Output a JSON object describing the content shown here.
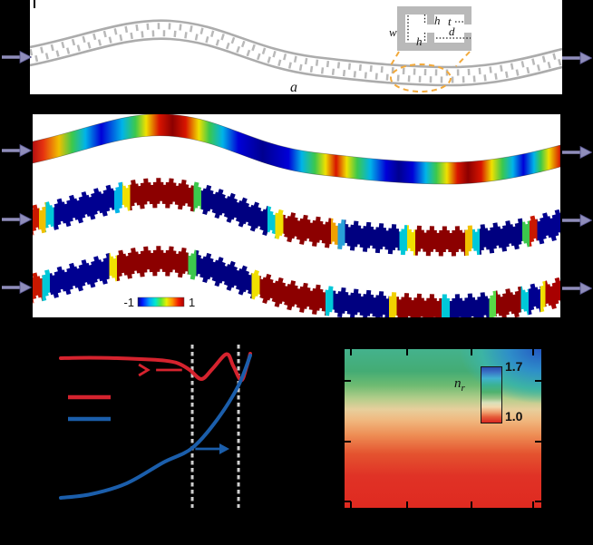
{
  "panel_a": {
    "labels": {
      "w": "w",
      "h_top": "h",
      "t": "t",
      "h_bottom": "h",
      "d": "d",
      "period": "a"
    },
    "colors": {
      "waveguide": "#b9b9b9",
      "rail": "#acacac",
      "highlight": "#f2a93b",
      "arrow": "#8f8dbb",
      "arrow_edge": "#55538c",
      "dim_line": "#1a1a1a"
    }
  },
  "panel_b": {
    "colorbar": {
      "min_label": "-1",
      "max_label": "1",
      "gradient": [
        {
          "o": 0,
          "c": "#000082"
        },
        {
          "o": 0.1,
          "c": "#0018ff"
        },
        {
          "o": 0.25,
          "c": "#00a4ff"
        },
        {
          "o": 0.38,
          "c": "#00e8d0"
        },
        {
          "o": 0.5,
          "c": "#58e838"
        },
        {
          "o": 0.62,
          "c": "#e8f000"
        },
        {
          "o": 0.75,
          "c": "#ff9000"
        },
        {
          "o": 0.88,
          "c": "#f01800"
        },
        {
          "o": 1,
          "c": "#a80000"
        }
      ]
    },
    "rows": [
      {
        "name": "smooth-waveguide-field",
        "comb": false,
        "stops": [
          {
            "o": 0,
            "c": "#b41010"
          },
          {
            "o": 0.02,
            "c": "#e63210"
          },
          {
            "o": 0.05,
            "c": "#f0c000"
          },
          {
            "o": 0.075,
            "c": "#3cc84c"
          },
          {
            "o": 0.1,
            "c": "#00b4e8"
          },
          {
            "o": 0.13,
            "c": "#0000d8"
          },
          {
            "o": 0.17,
            "c": "#00b4e8"
          },
          {
            "o": 0.195,
            "c": "#3cc84c"
          },
          {
            "o": 0.215,
            "c": "#f0e000"
          },
          {
            "o": 0.24,
            "c": "#d81400"
          },
          {
            "o": 0.265,
            "c": "#8c0000"
          },
          {
            "o": 0.29,
            "c": "#d81400"
          },
          {
            "o": 0.315,
            "c": "#f0e000"
          },
          {
            "o": 0.335,
            "c": "#3cc84c"
          },
          {
            "o": 0.36,
            "c": "#00b4e8"
          },
          {
            "o": 0.39,
            "c": "#0000d8"
          },
          {
            "o": 0.436,
            "c": "#000090"
          },
          {
            "o": 0.485,
            "c": "#0000d8"
          },
          {
            "o": 0.51,
            "c": "#00b4e8"
          },
          {
            "o": 0.535,
            "c": "#3cc84c"
          },
          {
            "o": 0.555,
            "c": "#f0e000"
          },
          {
            "o": 0.575,
            "c": "#d81400"
          },
          {
            "o": 0.595,
            "c": "#f0e000"
          },
          {
            "o": 0.615,
            "c": "#3cc84c"
          },
          {
            "o": 0.64,
            "c": "#00b4e8"
          },
          {
            "o": 0.67,
            "c": "#0000d8"
          },
          {
            "o": 0.694,
            "c": "#000090"
          },
          {
            "o": 0.72,
            "c": "#0000d8"
          },
          {
            "o": 0.745,
            "c": "#00b4e8"
          },
          {
            "o": 0.765,
            "c": "#3cc84c"
          },
          {
            "o": 0.785,
            "c": "#f0e000"
          },
          {
            "o": 0.805,
            "c": "#d81400"
          },
          {
            "o": 0.825,
            "c": "#8c0000"
          },
          {
            "o": 0.85,
            "c": "#d81400"
          },
          {
            "o": 0.87,
            "c": "#f0e000"
          },
          {
            "o": 0.89,
            "c": "#3cc84c"
          },
          {
            "o": 0.91,
            "c": "#00b4e8"
          },
          {
            "o": 0.93,
            "c": "#0000d8"
          },
          {
            "o": 0.95,
            "c": "#00b4e8"
          },
          {
            "o": 0.963,
            "c": "#3cc84c"
          },
          {
            "o": 0.978,
            "c": "#f0e000"
          },
          {
            "o": 1,
            "c": "#d81400"
          }
        ]
      },
      {
        "name": "comb-waveguide-field-1",
        "comb": true,
        "stops": [
          {
            "o": 0,
            "c": "#c81800"
          },
          {
            "o": 0.012,
            "c": "#c81800"
          },
          {
            "o": 0.012,
            "c": "#f0c000"
          },
          {
            "o": 0.025,
            "c": "#f0c000"
          },
          {
            "o": 0.025,
            "c": "#00c8d8"
          },
          {
            "o": 0.04,
            "c": "#00c8d8"
          },
          {
            "o": 0.04,
            "c": "#000090"
          },
          {
            "o": 0.155,
            "c": "#000090"
          },
          {
            "o": 0.155,
            "c": "#00b4e8"
          },
          {
            "o": 0.17,
            "c": "#00b4e8"
          },
          {
            "o": 0.17,
            "c": "#f0e000"
          },
          {
            "o": 0.185,
            "c": "#f0e000"
          },
          {
            "o": 0.185,
            "c": "#8c0000"
          },
          {
            "o": 0.305,
            "c": "#8c0000"
          },
          {
            "o": 0.305,
            "c": "#3cc84c"
          },
          {
            "o": 0.32,
            "c": "#3cc84c"
          },
          {
            "o": 0.32,
            "c": "#000080"
          },
          {
            "o": 0.445,
            "c": "#000080"
          },
          {
            "o": 0.445,
            "c": "#00c8d8"
          },
          {
            "o": 0.46,
            "c": "#00c8d8"
          },
          {
            "o": 0.46,
            "c": "#f0e000"
          },
          {
            "o": 0.475,
            "c": "#f0e000"
          },
          {
            "o": 0.475,
            "c": "#8c0000"
          },
          {
            "o": 0.565,
            "c": "#8c0000"
          },
          {
            "o": 0.565,
            "c": "#f0a000"
          },
          {
            "o": 0.578,
            "c": "#f0a000"
          },
          {
            "o": 0.578,
            "c": "#28a0d8"
          },
          {
            "o": 0.592,
            "c": "#28a0d8"
          },
          {
            "o": 0.592,
            "c": "#000080"
          },
          {
            "o": 0.695,
            "c": "#000080"
          },
          {
            "o": 0.695,
            "c": "#00c8d8"
          },
          {
            "o": 0.71,
            "c": "#00c8d8"
          },
          {
            "o": 0.71,
            "c": "#f0e000"
          },
          {
            "o": 0.725,
            "c": "#f0e000"
          },
          {
            "o": 0.725,
            "c": "#8c0000"
          },
          {
            "o": 0.82,
            "c": "#8c0000"
          },
          {
            "o": 0.82,
            "c": "#f0c000"
          },
          {
            "o": 0.833,
            "c": "#f0c000"
          },
          {
            "o": 0.833,
            "c": "#00c8d8"
          },
          {
            "o": 0.847,
            "c": "#00c8d8"
          },
          {
            "o": 0.847,
            "c": "#000080"
          },
          {
            "o": 0.928,
            "c": "#000080"
          },
          {
            "o": 0.928,
            "c": "#3cc84c"
          },
          {
            "o": 0.942,
            "c": "#3cc84c"
          },
          {
            "o": 0.942,
            "c": "#c81800"
          },
          {
            "o": 0.956,
            "c": "#c81800"
          },
          {
            "o": 0.956,
            "c": "#000090"
          },
          {
            "o": 1,
            "c": "#000090"
          }
        ]
      },
      {
        "name": "comb-waveguide-field-2",
        "comb": true,
        "stops": [
          {
            "o": 0,
            "c": "#c81800"
          },
          {
            "o": 0.018,
            "c": "#c81800"
          },
          {
            "o": 0.018,
            "c": "#00c8d8"
          },
          {
            "o": 0.033,
            "c": "#00c8d8"
          },
          {
            "o": 0.033,
            "c": "#000090"
          },
          {
            "o": 0.145,
            "c": "#000090"
          },
          {
            "o": 0.145,
            "c": "#f0e000"
          },
          {
            "o": 0.16,
            "c": "#f0e000"
          },
          {
            "o": 0.16,
            "c": "#8c0000"
          },
          {
            "o": 0.295,
            "c": "#8c0000"
          },
          {
            "o": 0.295,
            "c": "#3cc84c"
          },
          {
            "o": 0.31,
            "c": "#3cc84c"
          },
          {
            "o": 0.31,
            "c": "#000080"
          },
          {
            "o": 0.415,
            "c": "#000080"
          },
          {
            "o": 0.415,
            "c": "#f0e000"
          },
          {
            "o": 0.43,
            "c": "#f0e000"
          },
          {
            "o": 0.43,
            "c": "#8c0000"
          },
          {
            "o": 0.555,
            "c": "#8c0000"
          },
          {
            "o": 0.555,
            "c": "#00c8d8"
          },
          {
            "o": 0.57,
            "c": "#00c8d8"
          },
          {
            "o": 0.57,
            "c": "#000080"
          },
          {
            "o": 0.675,
            "c": "#000080"
          },
          {
            "o": 0.675,
            "c": "#f0d000"
          },
          {
            "o": 0.69,
            "c": "#f0d000"
          },
          {
            "o": 0.69,
            "c": "#8c0000"
          },
          {
            "o": 0.775,
            "c": "#8c0000"
          },
          {
            "o": 0.775,
            "c": "#00c8d8"
          },
          {
            "o": 0.79,
            "c": "#00c8d8"
          },
          {
            "o": 0.79,
            "c": "#000080"
          },
          {
            "o": 0.865,
            "c": "#000080"
          },
          {
            "o": 0.865,
            "c": "#58d848"
          },
          {
            "o": 0.878,
            "c": "#58d848"
          },
          {
            "o": 0.878,
            "c": "#8c0000"
          },
          {
            "o": 0.925,
            "c": "#8c0000"
          },
          {
            "o": 0.925,
            "c": "#00c8d8"
          },
          {
            "o": 0.94,
            "c": "#00c8d8"
          },
          {
            "o": 0.94,
            "c": "#000090"
          },
          {
            "o": 0.962,
            "c": "#000090"
          },
          {
            "o": 0.962,
            "c": "#f0e000"
          },
          {
            "o": 0.972,
            "c": "#f0e000"
          },
          {
            "o": 0.972,
            "c": "#a80000"
          },
          {
            "o": 1,
            "c": "#a80000"
          }
        ]
      }
    ]
  },
  "panel_c": {
    "colors": {
      "red": "#d5232e",
      "blue": "#1b5eab",
      "dashed": "#cfcfcf"
    }
  },
  "panel_d": {
    "colorbar": {
      "symbol": "n",
      "symbol_sub": "r",
      "max_label": "1.7",
      "min_label": "1.0",
      "gradient_top_to_bottom": [
        {
          "o": 0,
          "c": "#2b4cb2"
        },
        {
          "o": 0.09,
          "c": "#3a74c6"
        },
        {
          "o": 0.2,
          "c": "#40b2d0"
        },
        {
          "o": 0.32,
          "c": "#3ab294"
        },
        {
          "o": 0.45,
          "c": "#4fb26e"
        },
        {
          "o": 0.56,
          "c": "#93c488"
        },
        {
          "o": 0.64,
          "c": "#d8e0ba"
        },
        {
          "o": 0.72,
          "c": "#f3d8ac"
        },
        {
          "o": 0.81,
          "c": "#f0a271"
        },
        {
          "o": 0.9,
          "c": "#e55b38"
        },
        {
          "o": 1,
          "c": "#d92721"
        }
      ]
    },
    "map_gradient_bottom_to_top": [
      {
        "o": 0,
        "c": "#df2a20"
      },
      {
        "o": 0.2,
        "c": "#e03226"
      },
      {
        "o": 0.34,
        "c": "#e4532f"
      },
      {
        "o": 0.46,
        "c": "#ee8e55"
      },
      {
        "o": 0.55,
        "c": "#f0b77e"
      },
      {
        "o": 0.62,
        "c": "#e7cf9c"
      },
      {
        "o": 0.69,
        "c": "#b2cd8a"
      },
      {
        "o": 0.77,
        "c": "#6fbb72"
      },
      {
        "o": 0.86,
        "c": "#44ac74"
      },
      {
        "o": 1,
        "c": "#44b28d"
      }
    ],
    "corner_blue_colors": [
      "#2458c2",
      "#2e8ec9",
      "#3cb4a4"
    ]
  },
  "chart_data": [
    {
      "type": "line",
      "panel": "bottom-left",
      "axes_visible": false,
      "series": [
        {
          "name": "red-curve",
          "color": "#d5232e",
          "head": "open",
          "points": [
            [
              0,
              0.927
            ],
            [
              0.15,
              0.93
            ],
            [
              0.3,
              0.927
            ],
            [
              0.45,
              0.92
            ],
            [
              0.55,
              0.912
            ],
            [
              0.62,
              0.895
            ],
            [
              0.68,
              0.855
            ],
            [
              0.742,
              0.798
            ],
            [
              0.8,
              0.86
            ],
            [
              0.875,
              0.952
            ],
            [
              0.91,
              0.88
            ],
            [
              0.952,
              0.79
            ],
            [
              0.98,
              0.87
            ],
            [
              1,
              0.955
            ]
          ]
        },
        {
          "name": "blue-curve",
          "color": "#1b5eab",
          "head": "filled",
          "points": [
            [
              0,
              0.062
            ],
            [
              0.158,
              0.084
            ],
            [
              0.349,
              0.152
            ],
            [
              0.541,
              0.281
            ],
            [
              0.694,
              0.371
            ],
            [
              0.828,
              0.551
            ],
            [
              0.938,
              0.758
            ],
            [
              1,
              0.944
            ]
          ]
        }
      ],
      "annotations": {
        "vertical_dashed_lines_x": [
          0.694,
          0.938
        ],
        "red_arrow": {
          "x1": 0.64,
          "x2": 0.46,
          "y": 0.854,
          "head": "open"
        },
        "blue_arrow": {
          "x1": 0.71,
          "x2": 0.89,
          "y": 0.365,
          "head": "filled"
        },
        "legend_swatches": [
          "#d5232e",
          "#1b5eab"
        ]
      }
    },
    {
      "type": "heatmap",
      "panel": "bottom-right",
      "colorbar": {
        "label": "nr",
        "min": 1.0,
        "max": 1.7
      },
      "value_low_region": "bottom (red, nr = 1.0)",
      "value_high_region": "top-right corner (blue, nr = 1.7)"
    }
  ]
}
